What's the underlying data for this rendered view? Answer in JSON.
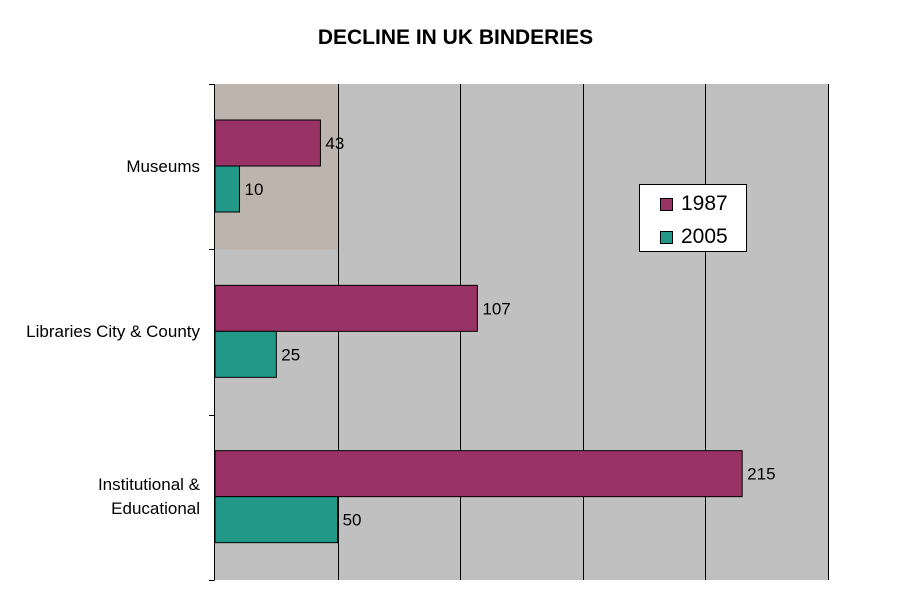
{
  "chart_data": {
    "type": "bar",
    "orientation": "horizontal",
    "title": "DECLINE IN UK BINDERIES",
    "categories": [
      "Museums",
      "Libraries City & County",
      "Institutional & Educational"
    ],
    "category_lines": [
      [
        "Museums"
      ],
      [
        "Libraries City & County"
      ],
      [
        "Institutional &",
        "Educational"
      ]
    ],
    "series": [
      {
        "name": "1987",
        "values": [
          43,
          107,
          215
        ],
        "color": "#993366"
      },
      {
        "name": "2005",
        "values": [
          10,
          25,
          50
        ],
        "color": "#229988"
      }
    ],
    "data_labels": true,
    "xlim": [
      0,
      250
    ],
    "grid": "vertical",
    "legend_position": "right",
    "plot_background": "#c0c0c0",
    "highlight_band": {
      "range": [
        0,
        50
      ],
      "color": "#bdb5ad"
    }
  }
}
